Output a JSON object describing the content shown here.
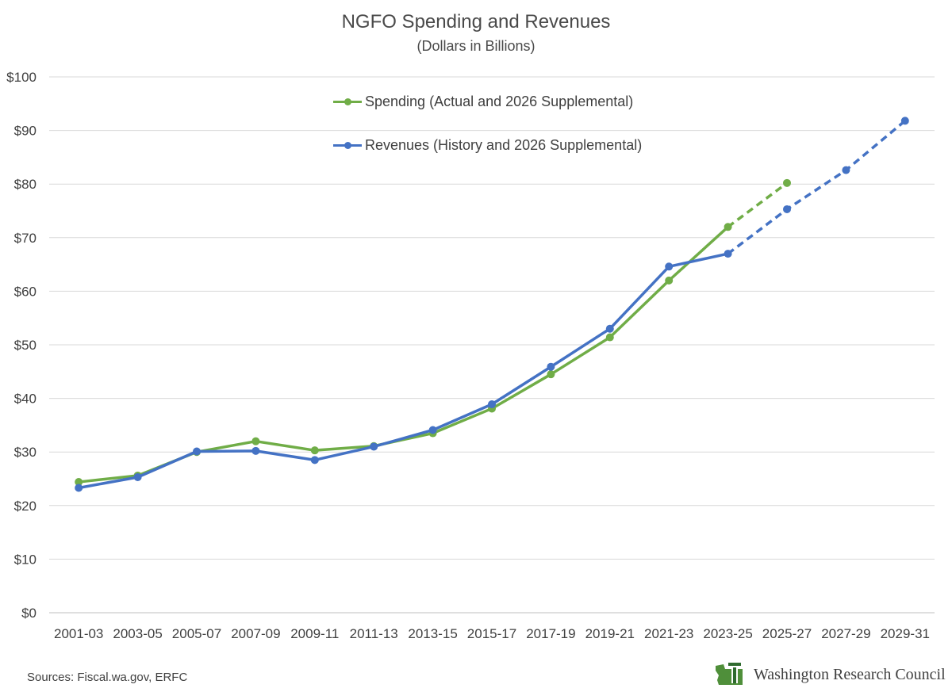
{
  "title": "NGFO Spending and Revenues",
  "subtitle": "(Dollars in Billions)",
  "source": "Sources: Fiscal.wa.gov, ERFC",
  "brand": {
    "name": "Washington Research Council",
    "logo_icon": "washington-state-logo-icon"
  },
  "colors": {
    "spending": "#70ad47",
    "revenues": "#4472c4",
    "grid": "#d9d9d9",
    "axis_text": "#404040"
  },
  "chart_data": {
    "type": "line",
    "title": "NGFO Spending and Revenues",
    "subtitle": "(Dollars in Billions)",
    "categories": [
      "2001-03",
      "2003-05",
      "2005-07",
      "2007-09",
      "2009-11",
      "2011-13",
      "2013-15",
      "2015-17",
      "2017-19",
      "2019-21",
      "2021-23",
      "2023-25",
      "2025-27",
      "2027-29",
      "2029-31"
    ],
    "ylim": [
      0,
      100
    ],
    "yticks": [
      0,
      10,
      20,
      30,
      40,
      50,
      60,
      70,
      80,
      90,
      100
    ],
    "ytick_labels": [
      "$0",
      "$10",
      "$20",
      "$30",
      "$40",
      "$50",
      "$60",
      "$70",
      "$80",
      "$90",
      "$100"
    ],
    "grid": true,
    "legend_position": "top-center",
    "series": [
      {
        "name": "Spending (Actual and 2026 Supplemental)",
        "color": "#70ad47",
        "values": [
          24.4,
          25.6,
          30.0,
          32.0,
          30.3,
          31.1,
          33.5,
          38.1,
          44.5,
          51.4,
          62.0,
          72.0,
          80.2,
          null,
          null
        ],
        "dashed_from_index": 11
      },
      {
        "name": "Revenues (History and 2026 Supplemental)",
        "color": "#4472c4",
        "values": [
          23.3,
          25.3,
          30.1,
          30.2,
          28.5,
          31.0,
          34.1,
          38.9,
          45.9,
          53.0,
          64.6,
          67.0,
          75.3,
          82.6,
          91.8
        ],
        "dashed_from_index": 11
      }
    ]
  }
}
